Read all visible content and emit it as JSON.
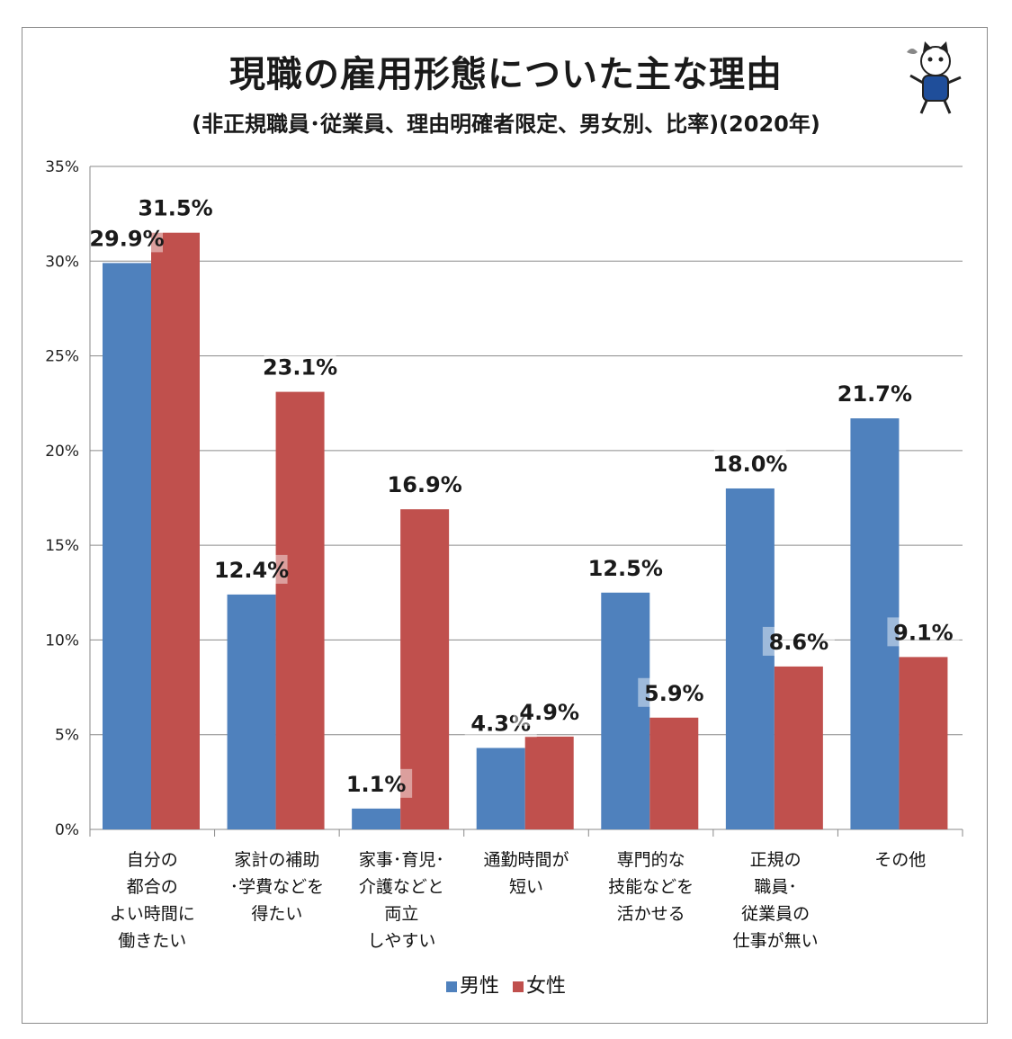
{
  "chart_data": {
    "type": "bar",
    "title": "現職の雇用形態についた主な理由",
    "subtitle": "(非正規職員･従業員、理由明確者限定、男女別、比率)(2020年)",
    "categories": [
      [
        "自分の",
        "都合の",
        "よい時間に",
        "働きたい"
      ],
      [
        "家計の補助",
        "･学費などを",
        "得たい"
      ],
      [
        "家事･育児･",
        "介護などと",
        "両立",
        "しやすい"
      ],
      [
        "通勤時間が",
        "短い"
      ],
      [
        "専門的な",
        "技能などを",
        "活かせる"
      ],
      [
        "正規の",
        "職員･",
        "従業員の",
        "仕事が無い"
      ],
      [
        "その他"
      ]
    ],
    "series": [
      {
        "name": "男性",
        "color": "#4f81bd",
        "values": [
          29.9,
          12.4,
          1.1,
          4.3,
          12.5,
          18.0,
          21.7
        ],
        "labels": [
          "29.9%",
          "12.4%",
          "1.1%",
          "4.3%",
          "12.5%",
          "18.0%",
          "21.7%"
        ]
      },
      {
        "name": "女性",
        "color": "#c0504d",
        "values": [
          31.5,
          23.1,
          16.9,
          4.9,
          5.9,
          8.6,
          9.1
        ],
        "labels": [
          "31.5%",
          "23.1%",
          "16.9%",
          "4.9%",
          "5.9%",
          "8.6%",
          "9.1%"
        ]
      }
    ],
    "ylim": [
      0,
      35
    ],
    "yticks": [
      0,
      5,
      10,
      15,
      20,
      25,
      30,
      35
    ],
    "ytick_labels": [
      "0%",
      "5%",
      "10%",
      "15%",
      "20%",
      "25%",
      "30%",
      "35%"
    ],
    "grid": true,
    "legend_position": "bottom"
  },
  "mascot": {
    "icon": "cat-mascot-icon"
  }
}
